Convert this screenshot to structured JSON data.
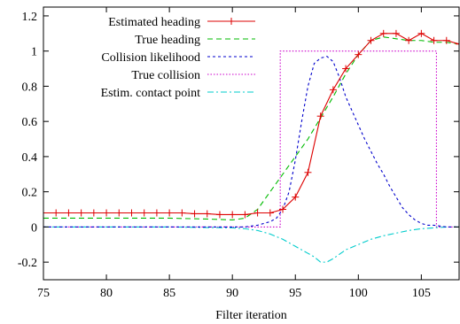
{
  "chart_data": {
    "type": "line",
    "title": "",
    "xlabel": "Filter iteration",
    "ylabel": "",
    "xlim": [
      75,
      108
    ],
    "ylim": [
      -0.3,
      1.25
    ],
    "xticks": [
      75,
      80,
      85,
      90,
      95,
      100,
      105
    ],
    "xtick_labels": [
      "75",
      "80",
      "85",
      "90",
      "95",
      "100",
      "105"
    ],
    "yticks": [
      -0.2,
      0,
      0.2,
      0.4,
      0.6,
      0.8,
      1,
      1.2
    ],
    "ytick_labels": [
      "-0.2",
      "0",
      "0.2",
      "0.4",
      "0.6",
      "0.8",
      "1",
      "1.2"
    ],
    "grid": false,
    "legend_position": "top-right",
    "series": [
      {
        "name": "Estimated heading",
        "color": "#dd0000",
        "style": "solid-with-plus-markers",
        "x": [
          75,
          76,
          77,
          78,
          79,
          80,
          81,
          82,
          83,
          84,
          85,
          86,
          87,
          88,
          89,
          90,
          91,
          92,
          93,
          94,
          95,
          96,
          97,
          98,
          99,
          100,
          101,
          102,
          103,
          104,
          105,
          106,
          107,
          108
        ],
        "y": [
          0.08,
          0.08,
          0.08,
          0.08,
          0.08,
          0.08,
          0.08,
          0.08,
          0.08,
          0.08,
          0.08,
          0.08,
          0.075,
          0.075,
          0.07,
          0.07,
          0.07,
          0.08,
          0.08,
          0.1,
          0.17,
          0.31,
          0.63,
          0.78,
          0.9,
          0.98,
          1.06,
          1.1,
          1.1,
          1.06,
          1.1,
          1.06,
          1.06,
          1.04
        ]
      },
      {
        "name": "True heading",
        "color": "#00bb00",
        "style": "dashed",
        "x": [
          75,
          80,
          85,
          88,
          90,
          91,
          92,
          93,
          94,
          95,
          96,
          97,
          98,
          99,
          100,
          101,
          102,
          103,
          104,
          105,
          106,
          107,
          108
        ],
        "y": [
          0.05,
          0.05,
          0.05,
          0.045,
          0.04,
          0.05,
          0.1,
          0.2,
          0.3,
          0.4,
          0.5,
          0.62,
          0.74,
          0.87,
          0.98,
          1.06,
          1.08,
          1.07,
          1.06,
          1.06,
          1.05,
          1.05,
          1.04
        ]
      },
      {
        "name": "Collision likelihood",
        "color": "#0000cc",
        "style": "short-dashed",
        "x": [
          75,
          80,
          85,
          90,
          91,
          92,
          93,
          93.5,
          94,
          94.5,
          95,
          95.5,
          96,
          96.5,
          97,
          97.5,
          98,
          98.5,
          99,
          99.5,
          100,
          100.5,
          101,
          101.5,
          102,
          102.5,
          103,
          103.5,
          104,
          104.5,
          105,
          105.5,
          106,
          107,
          108
        ],
        "y": [
          0.0,
          0.0,
          0.0,
          0.0,
          0.0,
          0.01,
          0.03,
          0.05,
          0.1,
          0.2,
          0.38,
          0.6,
          0.8,
          0.93,
          0.96,
          0.97,
          0.94,
          0.85,
          0.74,
          0.66,
          0.58,
          0.5,
          0.43,
          0.36,
          0.3,
          0.23,
          0.17,
          0.11,
          0.07,
          0.04,
          0.02,
          0.01,
          0.01,
          0.0,
          0.0
        ]
      },
      {
        "name": "True collision",
        "color": "#cc00cc",
        "style": "dotted",
        "x": [
          75,
          93.8,
          93.8,
          106.2,
          106.2,
          108
        ],
        "y": [
          0,
          0,
          1,
          1,
          0,
          0
        ]
      },
      {
        "name": "Estim. contact point",
        "color": "#00cccc",
        "style": "dash-dot",
        "x": [
          75,
          80,
          85,
          90,
          91,
          92,
          93,
          94,
          95,
          96,
          96.5,
          97,
          97.5,
          98,
          99,
          100,
          101,
          102,
          103,
          104,
          105,
          106,
          107,
          108
        ],
        "y": [
          0.0,
          0.0,
          0.0,
          -0.005,
          -0.01,
          -0.02,
          -0.04,
          -0.07,
          -0.11,
          -0.15,
          -0.17,
          -0.2,
          -0.2,
          -0.18,
          -0.13,
          -0.1,
          -0.07,
          -0.05,
          -0.035,
          -0.02,
          -0.01,
          -0.005,
          0.0,
          0.0
        ]
      }
    ]
  }
}
